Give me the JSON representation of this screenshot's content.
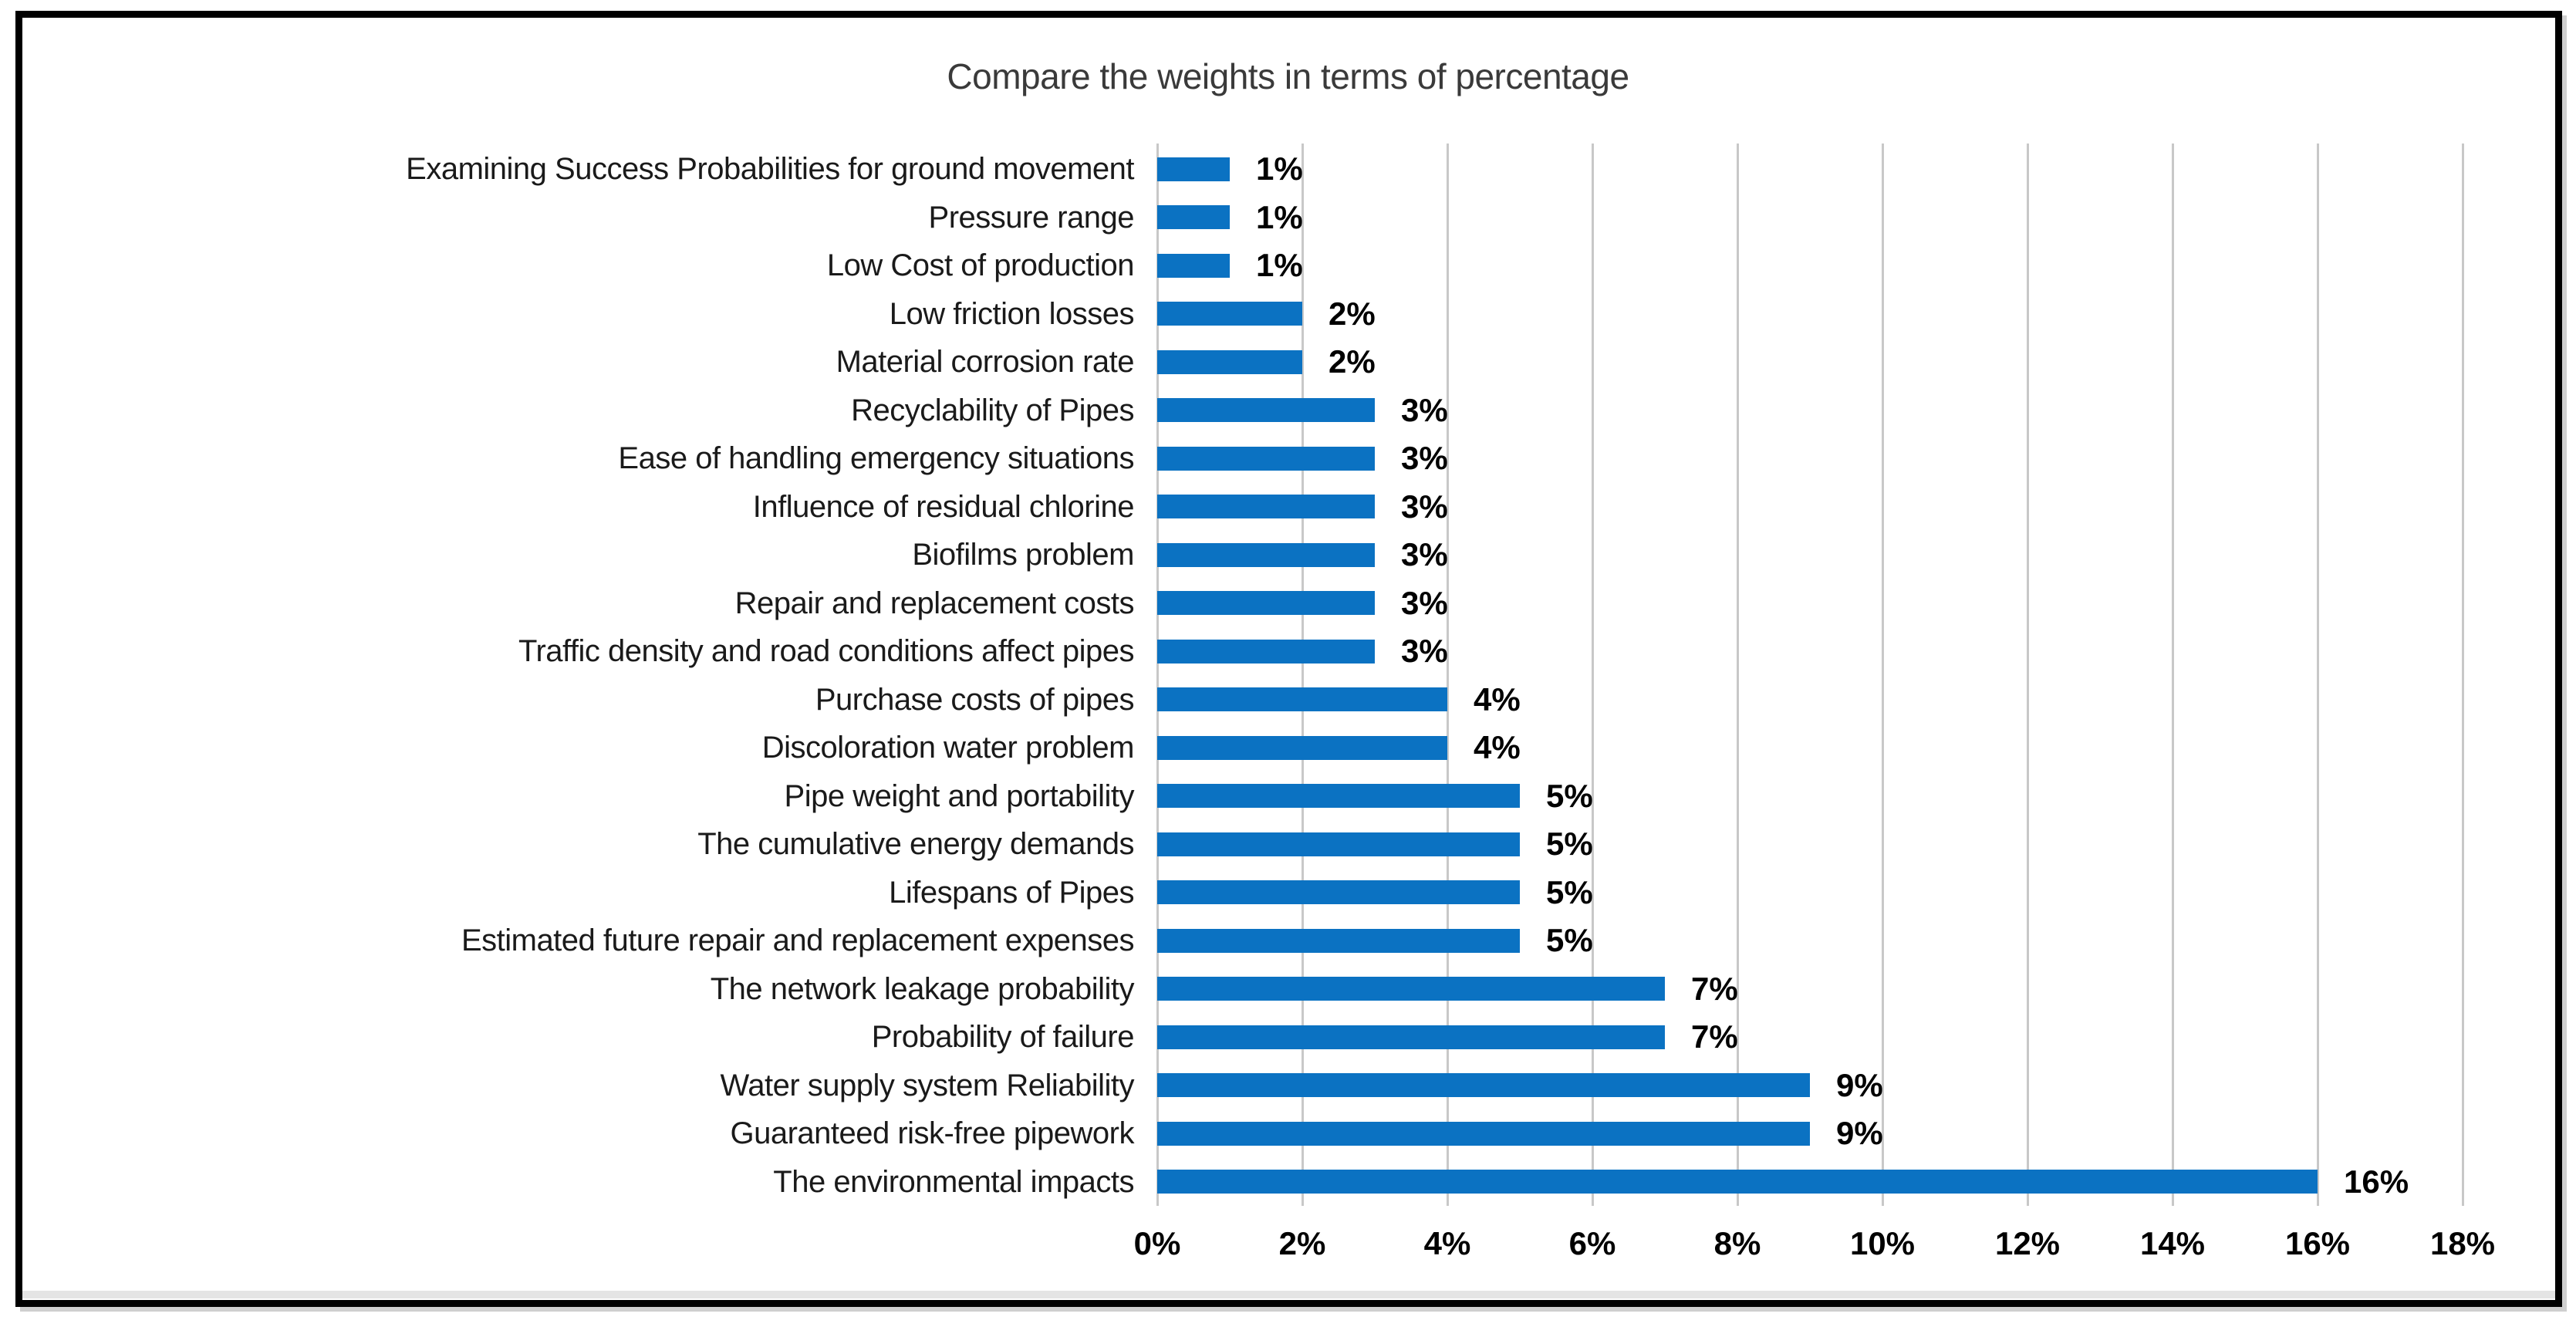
{
  "chart_data": {
    "type": "bar",
    "orientation": "horizontal",
    "title": "Compare the weights in terms of percentage",
    "categories": [
      "Examining Success Probabilities for ground movement",
      "Pressure range",
      "Low Cost of production",
      "Low friction losses",
      "Material corrosion rate",
      "Recyclability of Pipes",
      "Ease of handling emergency situations",
      "Influence of residual chlorine",
      "Biofilms problem",
      "Repair and replacement costs",
      "Traffic density and road conditions affect pipes",
      "Purchase costs of pipes",
      "Discoloration water problem",
      "Pipe weight and portability",
      "The cumulative energy demands",
      "Lifespans of Pipes",
      "Estimated future repair and replacement expenses",
      "The network leakage probability",
      "Probability of failure",
      "Water supply system Reliability",
      "Guaranteed risk-free pipework",
      "The environmental impacts"
    ],
    "values": [
      1,
      1,
      1,
      2,
      2,
      3,
      3,
      3,
      3,
      3,
      3,
      4,
      4,
      5,
      5,
      5,
      5,
      7,
      7,
      9,
      9,
      16
    ],
    "value_labels": [
      "1%",
      "1%",
      "1%",
      "2%",
      "2%",
      "3%",
      "3%",
      "3%",
      "3%",
      "3%",
      "3%",
      "4%",
      "4%",
      "5%",
      "5%",
      "5%",
      "5%",
      "7%",
      "7%",
      "9%",
      "9%",
      "16%"
    ],
    "xlabel": "",
    "ylabel": "",
    "xlim": [
      0,
      18
    ],
    "x_tick_step": 2,
    "x_tick_labels": [
      "0%",
      "2%",
      "4%",
      "6%",
      "8%",
      "10%",
      "12%",
      "14%",
      "16%",
      "18%"
    ],
    "grid": "vertical",
    "legend": "none",
    "bar_color": "#0B72C2",
    "gridline_color": "#C8C8C8",
    "category_label_color": "#1a1a1a",
    "title_color": "#3a3a3a"
  }
}
